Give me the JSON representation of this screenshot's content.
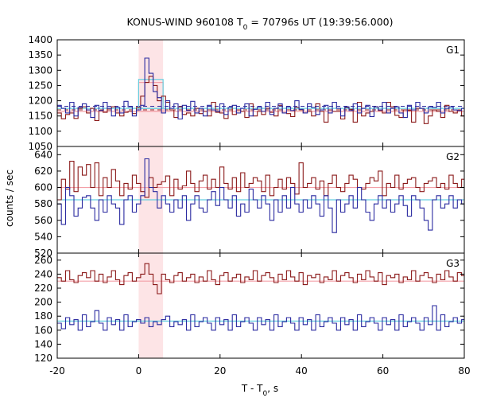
{
  "chart_data": {
    "type": "line",
    "title_main": "KONUS-WIND 960108 T",
    "title_sub": "0",
    "title_rest": " = 70796s UT (19:39:56.000)",
    "xlabel_main": "T - T",
    "xlabel_sub": "0",
    "xlabel_rest": ", s",
    "ylabel": "counts / sec",
    "xlim": [
      -20,
      80
    ],
    "x_ticks": [
      "-20",
      "0",
      "20",
      "40",
      "60",
      "80"
    ],
    "x_tick_values": [
      -20,
      0,
      20,
      40,
      60,
      80
    ],
    "highlight_interval": [
      0,
      6
    ],
    "panels": [
      {
        "name": "G1",
        "ylim": [
          1050,
          1400
        ],
        "y_ticks": [
          1050,
          1100,
          1150,
          1200,
          1250,
          1300,
          1350,
          1400
        ],
        "background": {
          "dark": 1165,
          "blue": 1175
        },
        "red_bg_dashed": 1170,
        "blue_bg_dashed": 1182,
        "red_step": {
          "x": [
            0,
            6
          ],
          "value": 1260
        },
        "blue_step": {
          "x": [
            0,
            6
          ],
          "value": 1270
        },
        "series": [
          {
            "color": "#8b1a1a",
            "step": 1.024,
            "values": [
              1160,
              1141,
              1155,
              1160,
              1142,
              1175,
              1180,
              1160,
              1175,
              1135,
              1168,
              1162,
              1175,
              1180,
              1160,
              1150,
              1162,
              1165,
              1158,
              1178,
              1215,
              1260,
              1280,
              1250,
              1200,
              1215,
              1195,
              1170,
              1145,
              1180,
              1155,
              1160,
              1150,
              1175,
              1158,
              1165,
              1150,
              1195,
              1162,
              1160,
              1142,
              1178,
              1155,
              1170,
              1165,
              1145,
              1190,
              1150,
              1165,
              1155,
              1175,
              1162,
              1150,
              1185,
              1160,
              1158,
              1148,
              1178,
              1170,
              1160,
              1165,
              1150,
              1190,
              1165,
              1130,
              1170,
              1165,
              1165,
              1140,
              1178,
              1172,
              1130,
              1195,
              1150,
              1160,
              1165,
              1180,
              1168,
              1160,
              1195,
              1180,
              1152,
              1145,
              1170,
              1168,
              1130,
              1175,
              1175,
              1125,
              1150,
              1170,
              1165,
              1145,
              1185,
              1165,
              1160,
              1168,
              1150
            ]
          },
          {
            "color": "#2a2aa0",
            "step": 1.024,
            "values": [
              1185,
              1175,
              1160,
              1195,
              1150,
              1178,
              1190,
              1170,
              1145,
              1185,
              1168,
              1195,
              1175,
              1150,
              1178,
              1160,
              1198,
              1180,
              1150,
              1170,
              1185,
              1340,
              1290,
              1230,
              1210,
              1160,
              1200,
              1175,
              1190,
              1140,
              1185,
              1168,
              1198,
              1160,
              1175,
              1150,
              1185,
              1170,
              1165,
              1190,
              1155,
              1178,
              1185,
              1160,
              1175,
              1190,
              1150,
              1172,
              1180,
              1165,
              1195,
              1155,
              1175,
              1190,
              1160,
              1180,
              1168,
              1200,
              1172,
              1160,
              1190,
              1178,
              1155,
              1170,
              1185,
              1160,
              1195,
              1175,
              1150,
              1180,
              1168,
              1190,
              1160,
              1175,
              1185,
              1148,
              1180,
              1170,
              1195,
              1160,
              1175,
              1180,
              1160,
              1145,
              1185,
              1170,
              1195,
              1175,
              1160,
              1180,
              1178,
              1195,
              1160,
              1175,
              1180,
              1170,
              1168,
              1175
            ]
          }
        ]
      },
      {
        "name": "G2",
        "ylim": [
          520,
          650
        ],
        "y_ticks": [
          520,
          540,
          560,
          580,
          600,
          620,
          640
        ],
        "background": {
          "dark": 600,
          "blue": 585
        },
        "series": [
          {
            "color": "#8b1a1a",
            "step": 1.024,
            "values": [
              585,
              610,
              598,
              632,
              595,
              625,
              615,
              628,
              600,
              630,
              590,
              612,
              600,
              622,
              608,
              590,
              605,
              598,
              615,
              605,
              595,
              588,
              612,
              600,
              604,
              607,
              614,
              590,
              610,
              598,
              602,
              620,
              605,
              595,
              608,
              615,
              598,
              610,
              600,
              625,
              605,
              598,
              612,
              595,
              618,
              600,
              605,
              612,
              608,
              595,
              615,
              590,
              600,
              610,
              598,
              612,
              605,
              592,
              630,
              600,
              605,
              612,
              598,
              608,
              590,
              605,
              615,
              600,
              595,
              605,
              615,
              610,
              600,
              598,
              605,
              612,
              608,
              620,
              590,
              605,
              600,
              615,
              598,
              605,
              610,
              612,
              600,
              595,
              605,
              608,
              612,
              600,
              605,
              598,
              615,
              605,
              600,
              610
            ]
          },
          {
            "color": "#2a2aa0",
            "step": 1.024,
            "values": [
              580,
              555,
              600,
              590,
              565,
              575,
              588,
              590,
              575,
              560,
              585,
              570,
              590,
              580,
              575,
              555,
              585,
              590,
              570,
              580,
              590,
              635,
              600,
              595,
              575,
              590,
              580,
              570,
              585,
              575,
              590,
              560,
              580,
              590,
              575,
              570,
              585,
              595,
              578,
              600,
              585,
              575,
              590,
              565,
              580,
              570,
              598,
              585,
              575,
              590,
              580,
              560,
              585,
              570,
              590,
              575,
              600,
              580,
              570,
              585,
              575,
              590,
              580,
              565,
              590,
              575,
              545,
              585,
              570,
              580,
              590,
              575,
              600,
              585,
              570,
              560,
              580,
              590,
              575,
              585,
              570,
              580,
              590,
              578,
              565,
              590,
              585,
              575,
              560,
              548,
              585,
              590,
              575,
              580,
              590,
              575,
              585,
              580
            ]
          }
        ]
      },
      {
        "name": "G3",
        "ylim": [
          120,
          270
        ],
        "y_ticks": [
          120,
          140,
          160,
          180,
          200,
          220,
          240,
          260
        ],
        "background": {
          "dark": 230,
          "blue": 173
        },
        "series": [
          {
            "color": "#8b1a1a",
            "step": 1.024,
            "values": [
              235,
              230,
              245,
              232,
              228,
              238,
              242,
              235,
              245,
              230,
              240,
              228,
              236,
              245,
              232,
              225,
              238,
              242,
              230,
              235,
              240,
              255,
              240,
              225,
              212,
              240,
              232,
              228,
              238,
              242,
              230,
              235,
              240,
              228,
              236,
              230,
              245,
              232,
              225,
              238,
              242,
              230,
              235,
              240,
              228,
              236,
              232,
              245,
              230,
              238,
              242,
              235,
              228,
              240,
              232,
              245,
              236,
              230,
              242,
              225,
              238,
              235,
              240,
              228,
              236,
              232,
              245,
              230,
              238,
              242,
              235,
              228,
              240,
              232,
              245,
              236,
              230,
              242,
              225,
              238,
              235,
              240,
              228,
              236,
              232,
              245,
              230,
              238,
              242,
              235,
              228,
              240,
              232,
              245,
              236,
              230,
              242,
              238
            ]
          },
          {
            "color": "#2a2aa0",
            "step": 1.024,
            "values": [
              170,
              162,
              178,
              168,
              175,
              160,
              182,
              165,
              172,
              188,
              170,
              160,
              178,
              168,
              175,
              160,
              182,
              165,
              172,
              175,
              170,
              178,
              165,
              172,
              168,
              175,
              180,
              165,
              172,
              168,
              175,
              160,
              182,
              165,
              172,
              178,
              170,
              160,
              178,
              168,
              175,
              160,
              182,
              165,
              172,
              178,
              170,
              160,
              178,
              168,
              175,
              160,
              182,
              165,
              172,
              178,
              170,
              160,
              178,
              168,
              175,
              160,
              182,
              165,
              172,
              178,
              170,
              160,
              178,
              168,
              175,
              160,
              182,
              165,
              172,
              178,
              170,
              160,
              178,
              168,
              175,
              160,
              182,
              165,
              172,
              178,
              170,
              160,
              178,
              168,
              195,
              160,
              182,
              165,
              172,
              178,
              170,
              175
            ]
          }
        ]
      }
    ]
  }
}
